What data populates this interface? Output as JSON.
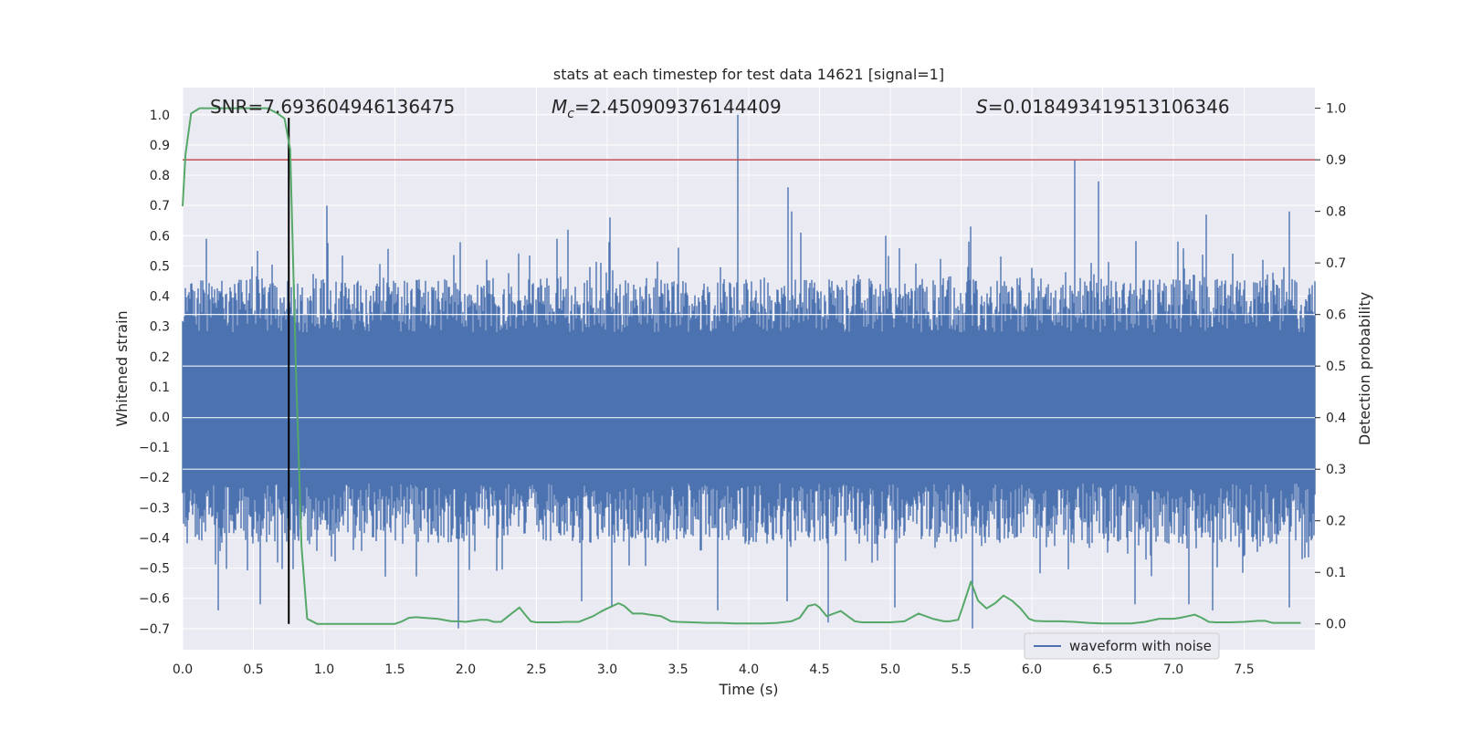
{
  "chart_data": {
    "type": "line",
    "title": "stats at each timestep for test data 14621 [signal=1]",
    "xlabel": "Time (s)",
    "ylabel": "Whitened strain",
    "y2label": "Detection probability",
    "xlim": [
      0.0,
      8.0
    ],
    "ylim": [
      -0.77,
      1.09
    ],
    "y2lim": [
      -0.05,
      1.04
    ],
    "xticks": [
      "0.0",
      "0.5",
      "1.0",
      "1.5",
      "2.0",
      "2.5",
      "3.0",
      "3.5",
      "4.0",
      "4.5",
      "5.0",
      "5.5",
      "6.0",
      "6.5",
      "7.0",
      "7.5"
    ],
    "yticks": [
      "1.0",
      "0.9",
      "0.8",
      "0.7",
      "0.6",
      "0.5",
      "0.4",
      "0.3",
      "0.2",
      "0.1",
      "0.0",
      "−0.1",
      "−0.2",
      "−0.3",
      "−0.4",
      "−0.5",
      "−0.6",
      "−0.7"
    ],
    "y2ticks": [
      "1.0",
      "0.9",
      "0.8",
      "0.7",
      "0.6",
      "0.5",
      "0.4",
      "0.3",
      "0.2",
      "0.1",
      "0.0"
    ],
    "grid": true,
    "legend_position": "lower-right",
    "annotations": {
      "snr": "SNR=7.693604946136475",
      "mc_symbol": "M",
      "mc_sub": "c",
      "mc_value": "=2.450909376144409",
      "s_symbol": "S",
      "s_value": "=0.018493419513106346"
    },
    "series": [
      {
        "name": "waveform with noise",
        "kind": "noise-envelope",
        "color": "#4c72b0",
        "typical_band": [
          -0.42,
          0.46
        ],
        "spikes": [
          {
            "x": 3.92,
            "y": 1.0
          },
          {
            "x": 6.3,
            "y": 0.85
          },
          {
            "x": 6.47,
            "y": 0.78
          },
          {
            "x": 4.28,
            "y": 0.76
          },
          {
            "x": 4.3,
            "y": 0.68
          },
          {
            "x": 1.02,
            "y": 0.7
          },
          {
            "x": 7.82,
            "y": 0.68
          },
          {
            "x": 7.23,
            "y": 0.67
          },
          {
            "x": 3.02,
            "y": 0.66
          },
          {
            "x": 0.17,
            "y": 0.59
          },
          {
            "x": 2.72,
            "y": 0.62
          },
          {
            "x": 5.57,
            "y": 0.63
          },
          {
            "x": 4.37,
            "y": 0.61
          },
          {
            "x": 4.97,
            "y": 0.6
          },
          {
            "x": 1.95,
            "y": -0.7
          },
          {
            "x": 5.58,
            "y": -0.7
          },
          {
            "x": 4.56,
            "y": -0.68
          },
          {
            "x": 0.25,
            "y": -0.64
          },
          {
            "x": 3.03,
            "y": -0.63
          },
          {
            "x": 3.78,
            "y": -0.64
          },
          {
            "x": 4.27,
            "y": -0.61
          },
          {
            "x": 2.82,
            "y": -0.61
          },
          {
            "x": 6.73,
            "y": -0.62
          },
          {
            "x": 7.82,
            "y": -0.63
          },
          {
            "x": 7.11,
            "y": -0.62
          },
          {
            "x": 7.28,
            "y": -0.64
          },
          {
            "x": 5.03,
            "y": -0.63
          },
          {
            "x": 0.55,
            "y": -0.62
          }
        ]
      },
      {
        "name": "detection probability",
        "axis": "right",
        "color": "#55a868",
        "x": [
          0.0,
          0.02,
          0.06,
          0.12,
          0.2,
          0.3,
          0.4,
          0.5,
          0.55,
          0.6,
          0.67,
          0.72,
          0.76,
          0.8,
          0.84,
          0.88,
          0.95,
          1.0,
          1.1,
          1.2,
          1.3,
          1.4,
          1.5,
          1.55,
          1.6,
          1.65,
          1.7,
          1.8,
          1.9,
          1.95,
          2.0,
          2.1,
          2.15,
          2.2,
          2.25,
          2.3,
          2.38,
          2.42,
          2.46,
          2.5,
          2.55,
          2.6,
          2.65,
          2.7,
          2.8,
          2.9,
          2.95,
          3.0,
          3.08,
          3.12,
          3.18,
          3.25,
          3.3,
          3.38,
          3.45,
          3.5,
          3.6,
          3.7,
          3.8,
          3.9,
          4.0,
          4.1,
          4.2,
          4.3,
          4.36,
          4.42,
          4.47,
          4.5,
          4.55,
          4.6,
          4.65,
          4.7,
          4.75,
          4.8,
          4.85,
          4.9,
          5.0,
          5.1,
          5.2,
          5.3,
          5.38,
          5.42,
          5.48,
          5.52,
          5.57,
          5.62,
          5.68,
          5.74,
          5.8,
          5.86,
          5.92,
          5.98,
          6.02,
          6.1,
          6.2,
          6.3,
          6.4,
          6.5,
          6.6,
          6.7,
          6.8,
          6.9,
          7.0,
          7.05,
          7.1,
          7.15,
          7.2,
          7.25,
          7.3,
          7.4,
          7.5,
          7.6,
          7.65,
          7.7,
          7.8,
          7.9
        ],
        "y": [
          0.81,
          0.91,
          0.99,
          1.0,
          1.0,
          1.0,
          1.0,
          1.0,
          1.0,
          1.0,
          0.99,
          0.98,
          0.92,
          0.5,
          0.15,
          0.01,
          0.0,
          0.0,
          0.0,
          0.0,
          0.0,
          0.0,
          0.0,
          0.005,
          0.012,
          0.013,
          0.012,
          0.01,
          0.005,
          0.005,
          0.004,
          0.008,
          0.008,
          0.004,
          0.004,
          0.015,
          0.032,
          0.018,
          0.005,
          0.003,
          0.003,
          0.003,
          0.003,
          0.004,
          0.004,
          0.015,
          0.023,
          0.03,
          0.04,
          0.035,
          0.02,
          0.02,
          0.018,
          0.015,
          0.005,
          0.004,
          0.003,
          0.002,
          0.002,
          0.001,
          0.001,
          0.001,
          0.002,
          0.005,
          0.012,
          0.035,
          0.038,
          0.032,
          0.015,
          0.02,
          0.025,
          0.015,
          0.005,
          0.003,
          0.003,
          0.003,
          0.003,
          0.005,
          0.02,
          0.01,
          0.005,
          0.005,
          0.008,
          0.04,
          0.082,
          0.045,
          0.03,
          0.04,
          0.055,
          0.045,
          0.03,
          0.01,
          0.006,
          0.005,
          0.005,
          0.004,
          0.002,
          0.001,
          0.001,
          0.001,
          0.004,
          0.01,
          0.01,
          0.012,
          0.015,
          0.018,
          0.012,
          0.004,
          0.003,
          0.003,
          0.004,
          0.006,
          0.006,
          0.002,
          0.002,
          0.002
        ]
      }
    ],
    "threshold": {
      "axis": "right",
      "y": 0.9,
      "color": "#c44e52"
    },
    "marker": {
      "x": 0.75,
      "color": "#000000"
    },
    "colors": {
      "background": "#eaeaf2",
      "grid": "#ffffff",
      "noise": "#4c72b0",
      "probability": "#55a868",
      "threshold": "#c44e52"
    }
  }
}
